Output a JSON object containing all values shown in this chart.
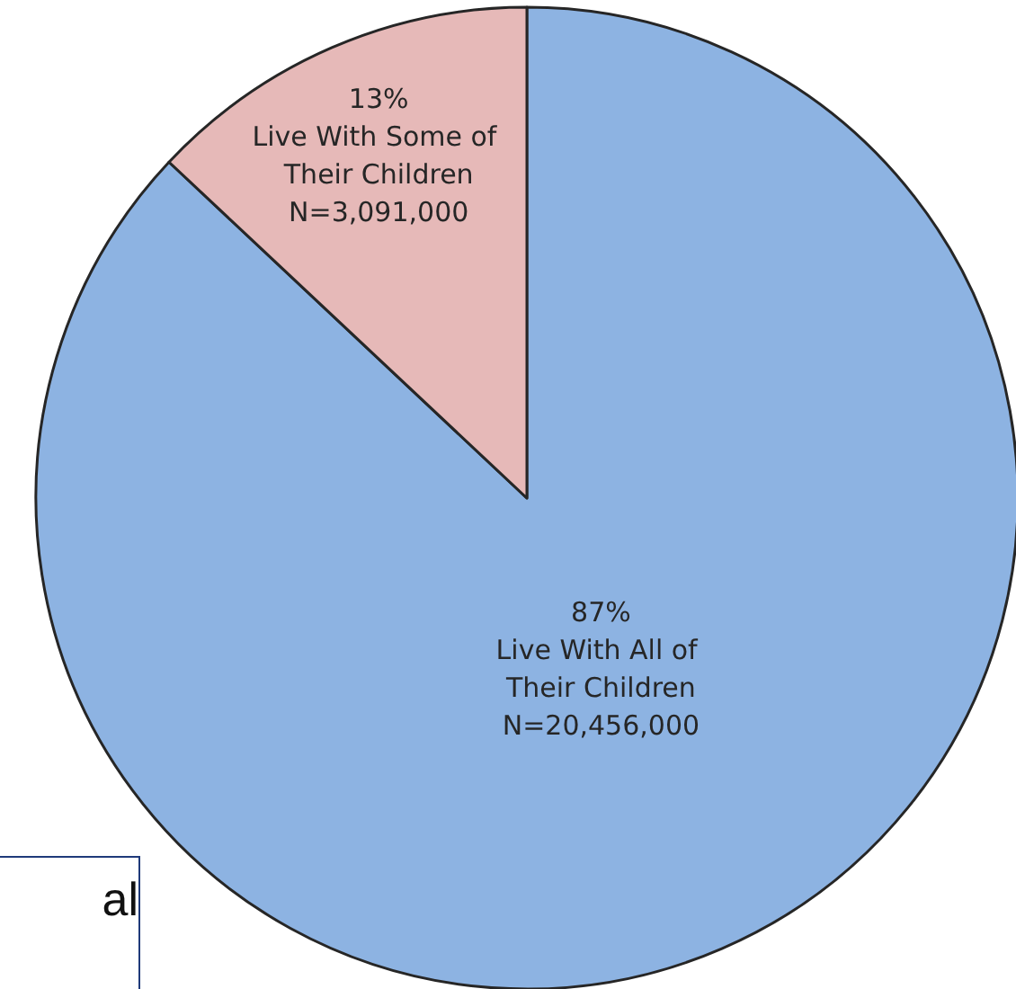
{
  "chart_data": {
    "type": "pie",
    "categories": [
      "Live With All of Their Children",
      "Live With Some of Their Children"
    ],
    "values": [
      87,
      13
    ],
    "value_labels": [
      [
        "87%",
        "N=20,456,000"
      ],
      [
        "13%",
        "N=3,091,000"
      ]
    ],
    "colors": [
      "#8db3e2",
      "#e6b9b8"
    ],
    "annotations": [
      "al"
    ]
  }
}
